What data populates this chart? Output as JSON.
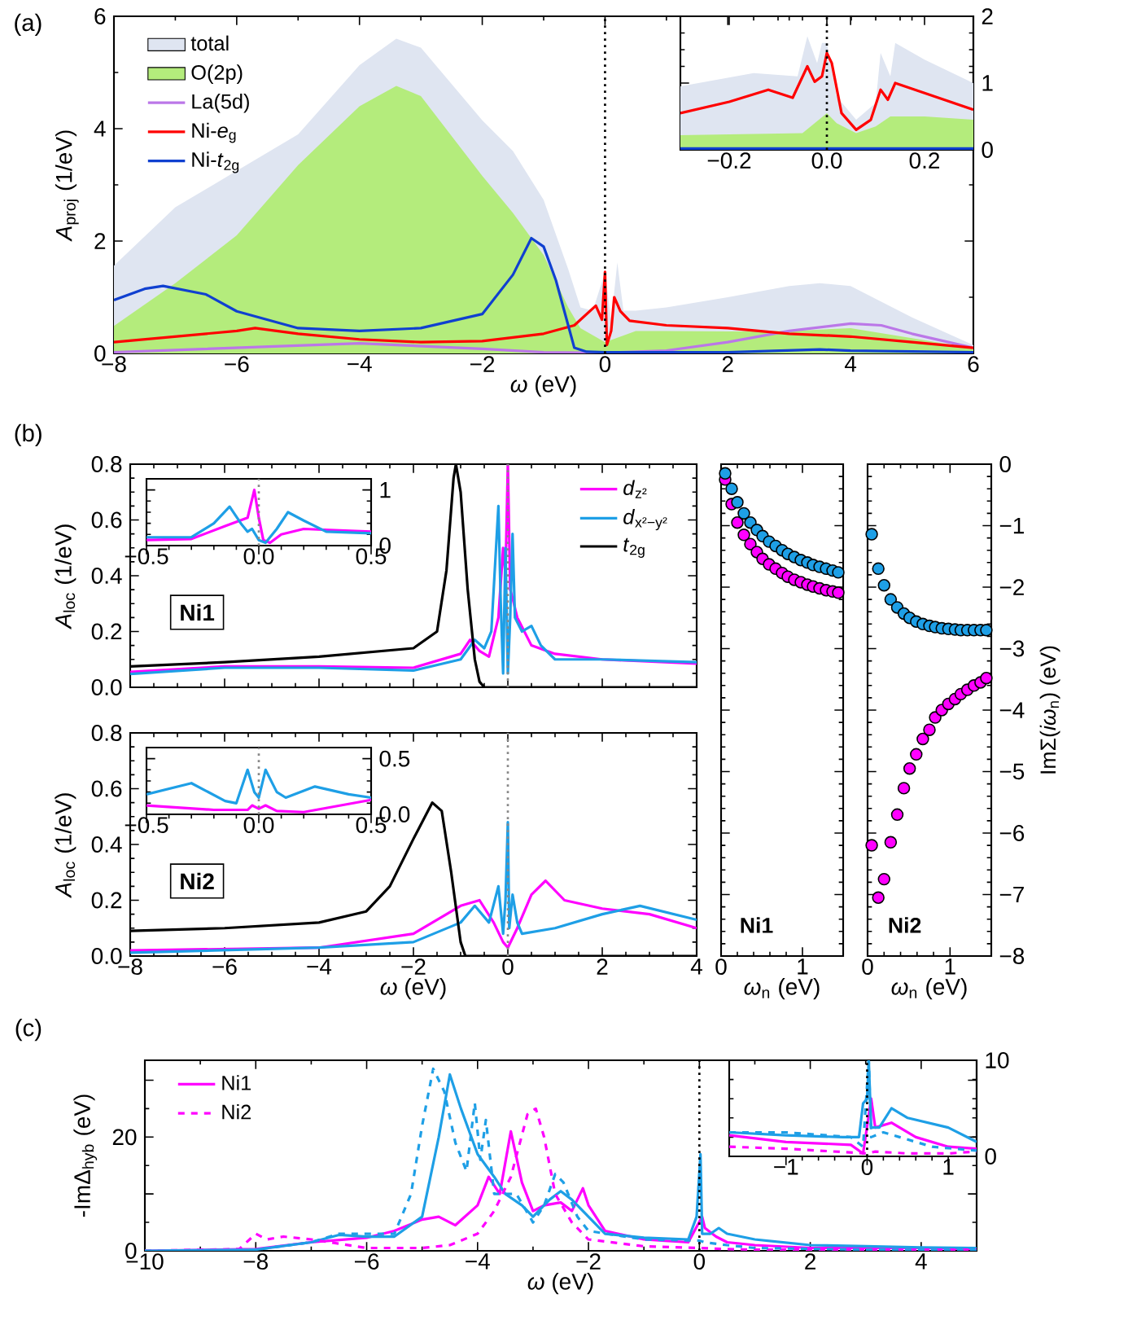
{
  "chart_data": [
    {
      "type": "line",
      "xlabel": "*ω* (eV)",
      "ylabel": "*A*$_{proj}$ (1/eV)",
      "annotations": [
        "(a)"
      ],
      "legend": "top left",
      "xlim": [
        -8,
        6
      ],
      "ylim": [
        0,
        6
      ],
      "xticks": [
        {
          "value": -8,
          "label": "−8"
        },
        {
          "value": -6,
          "label": "−6"
        },
        {
          "value": -4,
          "label": "−4"
        },
        {
          "value": -2,
          "label": "−2"
        },
        0,
        2,
        4,
        6
      ],
      "yticks": [
        0,
        2,
        4,
        6
      ],
      "ref_lines": [
        {
          "axis": "x",
          "value": 0,
          "color": "#000000",
          "line_style": "dotted"
        }
      ],
      "series": [
        {
          "name": "total",
          "type": "area",
          "color": "#dfe5f1",
          "x": [
            -8,
            -7,
            -6,
            -5,
            -4,
            -3.4,
            -3,
            -2,
            -1.5,
            -1,
            -0.6,
            -0.4,
            -0.2,
            0,
            0.1,
            0.2,
            0.3,
            0.5,
            1,
            2,
            3,
            3.5,
            4,
            5,
            6
          ],
          "values": [
            1.56,
            2.6,
            3.25,
            3.9,
            5.13,
            5.6,
            5.44,
            4.15,
            3.6,
            2.73,
            1.5,
            0.82,
            0.76,
            1.44,
            0.58,
            1.62,
            0.76,
            0.76,
            0.82,
            1.0,
            1.2,
            1.25,
            1.2,
            0.64,
            0.15
          ]
        },
        {
          "name": "O(2p)",
          "type": "area",
          "color": "#b4ec7c",
          "x": [
            -8,
            -7,
            -6,
            -5,
            -4,
            -3.4,
            -3,
            -2,
            -1.5,
            -1,
            -0.6,
            -0.4,
            0,
            0.5,
            1,
            2,
            3,
            4,
            5,
            6
          ],
          "values": [
            0.49,
            1.25,
            2.1,
            3.35,
            4.4,
            4.76,
            4.58,
            3.16,
            2.5,
            1.75,
            0.82,
            0.45,
            0.2,
            0.4,
            0.4,
            0.39,
            0.4,
            0.45,
            0.27,
            0.09
          ]
        },
        {
          "name": "La(5d)",
          "color": "#bb77e8",
          "x": [
            -8,
            -6,
            -4,
            -2,
            -1,
            0,
            1,
            2,
            3,
            4,
            4.5,
            5,
            6
          ],
          "values": [
            0.02,
            0.1,
            0.18,
            0.08,
            0.02,
            0.01,
            0.05,
            0.2,
            0.4,
            0.53,
            0.5,
            0.35,
            0.1
          ]
        },
        {
          "name": "Ni-*e*$_{g}$",
          "color": "#ff0000",
          "x": [
            -8,
            -7,
            -6,
            -5.7,
            -5,
            -4,
            -3,
            -2,
            -1,
            -0.5,
            -0.15,
            -0.05,
            0,
            0.03,
            0.1,
            0.15,
            0.25,
            0.4,
            1,
            2,
            3,
            4,
            5,
            6
          ],
          "values": [
            0.2,
            0.3,
            0.4,
            0.45,
            0.35,
            0.25,
            0.2,
            0.22,
            0.35,
            0.5,
            0.85,
            0.6,
            1.45,
            0.15,
            0.4,
            1.0,
            0.75,
            0.58,
            0.5,
            0.45,
            0.35,
            0.3,
            0.2,
            0.1
          ]
        },
        {
          "name": "Ni-*t*$_{2g}$",
          "color": "#1040d0",
          "x": [
            -8,
            -7.5,
            -7.2,
            -6.5,
            -6,
            -5,
            -4,
            -3,
            -2,
            -1.5,
            -1.2,
            -1,
            -0.8,
            -0.6,
            -0.5,
            -0.3,
            0,
            2,
            3.5,
            4,
            6
          ],
          "values": [
            0.95,
            1.15,
            1.2,
            1.05,
            0.75,
            0.45,
            0.4,
            0.45,
            0.7,
            1.4,
            2.05,
            1.9,
            1.3,
            0.5,
            0.1,
            0.03,
            0.02,
            0.02,
            0.07,
            0.05,
            0.02
          ]
        }
      ]
    },
    {
      "type": "line",
      "xlim": [
        -0.3,
        0.3
      ],
      "ylim": [
        0,
        2
      ],
      "xticks": [
        {
          "value": -0.2,
          "label": "−0.2"
        },
        {
          "value": 0,
          "label": "0.0"
        },
        {
          "value": 0.2,
          "label": "0.2"
        }
      ],
      "yticks": [
        0,
        1,
        2
      ],
      "ref_lines": [
        {
          "axis": "x",
          "value": 0,
          "color": "#000000",
          "line_style": "dotted"
        }
      ],
      "series": [
        {
          "type": "area",
          "color": "#dfe5f1",
          "x": [
            -0.3,
            -0.15,
            -0.06,
            -0.04,
            -0.02,
            -0.01,
            0,
            0.02,
            0.06,
            0.1,
            0.11,
            0.13,
            0.14,
            0.2,
            0.3
          ],
          "values": [
            0.95,
            1.15,
            1.1,
            1.7,
            1.3,
            1.6,
            1.6,
            0.8,
            0.45,
            0.7,
            1.45,
            1.1,
            1.6,
            1.35,
            1.0
          ]
        },
        {
          "type": "area",
          "color": "#b4ec7c",
          "x": [
            -0.3,
            -0.05,
            0,
            0.02,
            0.06,
            0.1,
            0.13,
            0.2,
            0.3
          ],
          "values": [
            0.22,
            0.25,
            0.55,
            0.4,
            0.25,
            0.35,
            0.5,
            0.5,
            0.45
          ]
        },
        {
          "color": "#ff0000",
          "x": [
            -0.3,
            -0.2,
            -0.12,
            -0.07,
            -0.04,
            -0.025,
            -0.01,
            0,
            0.01,
            0.03,
            0.06,
            0.09,
            0.11,
            0.125,
            0.14,
            0.2,
            0.3
          ],
          "values": [
            0.55,
            0.72,
            0.9,
            0.78,
            1.25,
            1.02,
            1.1,
            1.45,
            1.3,
            0.55,
            0.3,
            0.45,
            0.9,
            0.75,
            1.0,
            0.85,
            0.6
          ]
        },
        {
          "color": "#1040d0",
          "x": [
            -0.3,
            0.3
          ],
          "values": [
            0.02,
            0.02
          ]
        }
      ]
    },
    {
      "type": "line",
      "ylabel": "*A*$_{loc}$ (1/eV)",
      "annotations": [
        "(b)",
        "Ni1"
      ],
      "legend": "top right",
      "tick_labels": "y",
      "xlim": [
        -8,
        4
      ],
      "ylim": [
        0,
        0.8
      ],
      "xticks": [
        -8,
        -6,
        -4,
        -2,
        0,
        2,
        4
      ],
      "yticks": [
        {
          "value": 0,
          "label": "0.0"
        },
        {
          "value": 0.2,
          "label": "0.2"
        },
        {
          "value": 0.4,
          "label": "0.4"
        },
        {
          "value": 0.6,
          "label": "0.6"
        },
        {
          "value": 0.8,
          "label": "0.8"
        }
      ],
      "ref_lines": [
        {
          "axis": "x",
          "value": 0,
          "color": "#888888",
          "line_style": "dotted"
        }
      ],
      "series": [
        {
          "name": "*d*$_{z²}$",
          "color": "#ff00ff",
          "x": [
            -8,
            -6,
            -4,
            -2,
            -1,
            -0.8,
            -0.6,
            -0.4,
            -0.2,
            -0.1,
            -0.05,
            0,
            0.05,
            0.1,
            0.2,
            0.5,
            1,
            2,
            4
          ],
          "values": [
            0.055,
            0.075,
            0.075,
            0.07,
            0.12,
            0.17,
            0.13,
            0.11,
            0.25,
            0.5,
            0.4,
            0.8,
            0.35,
            0.32,
            0.25,
            0.15,
            0.12,
            0.1,
            0.085
          ]
        },
        {
          "name": "*d*$_{x²−y²}$",
          "color": "#1e9fe6",
          "x": [
            -8,
            -6,
            -4,
            -2,
            -1,
            -0.7,
            -0.5,
            -0.35,
            -0.2,
            -0.15,
            -0.1,
            -0.05,
            0,
            0.05,
            0.1,
            0.15,
            0.3,
            0.5,
            0.7,
            1,
            2,
            4
          ],
          "values": [
            0.048,
            0.07,
            0.07,
            0.06,
            0.1,
            0.17,
            0.14,
            0.2,
            0.65,
            0.3,
            0.05,
            0.5,
            0.05,
            0.25,
            0.55,
            0.25,
            0.2,
            0.22,
            0.15,
            0.1,
            0.1,
            0.09
          ]
        },
        {
          "name": "*t*$_{2g}$",
          "color": "#000000",
          "x": [
            -8,
            -6,
            -4,
            -2,
            -1.5,
            -1.3,
            -1.15,
            -1.1,
            -1.0,
            -0.85,
            -0.7,
            -0.6,
            -0.5,
            4
          ],
          "values": [
            0.075,
            0.09,
            0.11,
            0.14,
            0.2,
            0.42,
            0.75,
            0.8,
            0.7,
            0.35,
            0.1,
            0.02,
            0,
            0
          ]
        }
      ]
    },
    {
      "type": "line",
      "xlim": [
        -0.5,
        0.5
      ],
      "ylim": [
        0,
        1.2
      ],
      "xticks": [
        {
          "value": -0.5,
          "label": "−0.5"
        },
        {
          "value": 0,
          "label": "0.0"
        },
        {
          "value": 0.5,
          "label": "0.5"
        }
      ],
      "yticks": [
        0,
        1
      ],
      "ref_lines": [
        {
          "axis": "x",
          "value": 0,
          "color": "#888888",
          "line_style": "dotted"
        }
      ],
      "series": [
        {
          "color": "#ff00ff",
          "x": [
            -0.5,
            -0.3,
            -0.15,
            -0.05,
            -0.02,
            0,
            0.02,
            0.05,
            0.1,
            0.2,
            0.5
          ],
          "values": [
            0.1,
            0.12,
            0.35,
            0.5,
            1.0,
            0.5,
            0.1,
            0.05,
            0.2,
            0.3,
            0.25
          ]
        },
        {
          "color": "#1e9fe6",
          "x": [
            -0.5,
            -0.3,
            -0.2,
            -0.13,
            -0.08,
            -0.05,
            -0.03,
            0,
            0.03,
            0.08,
            0.13,
            0.2,
            0.3,
            0.5
          ],
          "values": [
            0.15,
            0.15,
            0.4,
            0.7,
            0.4,
            0.25,
            0.3,
            0.1,
            0.05,
            0.3,
            0.6,
            0.45,
            0.25,
            0.22
          ]
        }
      ]
    },
    {
      "type": "line",
      "xlabel": "*ω* (eV)",
      "ylabel": "*A*$_{loc}$ (1/eV)",
      "annotations": [
        "Ni2"
      ],
      "xlim": [
        -8,
        4
      ],
      "ylim": [
        0,
        0.8
      ],
      "xticks": [
        {
          "value": -8,
          "label": "−8"
        },
        {
          "value": -6,
          "label": "−6"
        },
        {
          "value": -4,
          "label": "−4"
        },
        {
          "value": -2,
          "label": "−2"
        },
        0,
        2,
        4
      ],
      "yticks": [
        {
          "value": 0,
          "label": "0.0"
        },
        {
          "value": 0.2,
          "label": "0.2"
        },
        {
          "value": 0.4,
          "label": "0.4"
        },
        {
          "value": 0.6,
          "label": "0.6"
        },
        {
          "value": 0.8,
          "label": "0.8"
        }
      ],
      "ref_lines": [
        {
          "axis": "x",
          "value": 0,
          "color": "#888888",
          "line_style": "dotted"
        }
      ],
      "series": [
        {
          "color": "#ff00ff",
          "x": [
            -8,
            -4,
            -2,
            -1,
            -0.6,
            -0.3,
            -0.1,
            0,
            0.2,
            0.5,
            0.8,
            1.2,
            2,
            3,
            4
          ],
          "values": [
            0.02,
            0.03,
            0.08,
            0.18,
            0.2,
            0.12,
            0.05,
            0.03,
            0.1,
            0.22,
            0.27,
            0.2,
            0.17,
            0.15,
            0.1
          ]
        },
        {
          "color": "#1e9fe6",
          "x": [
            -8,
            -4,
            -2,
            -1,
            -0.7,
            -0.4,
            -0.2,
            -0.1,
            -0.05,
            0,
            0.03,
            0.1,
            0.2,
            0.3,
            1,
            2,
            2.8,
            4
          ],
          "values": [
            0.012,
            0.03,
            0.05,
            0.12,
            0.18,
            0.12,
            0.25,
            0.08,
            0.2,
            0.48,
            0.1,
            0.22,
            0.12,
            0.08,
            0.1,
            0.15,
            0.18,
            0.13
          ]
        },
        {
          "color": "#000000",
          "x": [
            -8,
            -6,
            -4,
            -3,
            -2.5,
            -2,
            -1.6,
            -1.4,
            -1.2,
            -1,
            -0.9,
            4
          ],
          "values": [
            0.09,
            0.1,
            0.12,
            0.16,
            0.25,
            0.42,
            0.55,
            0.52,
            0.3,
            0.05,
            0,
            0
          ]
        }
      ]
    },
    {
      "type": "line",
      "xlim": [
        -0.5,
        0.5
      ],
      "ylim": [
        0,
        0.6
      ],
      "xticks": [
        {
          "value": -0.5,
          "label": "−0.5"
        },
        {
          "value": 0,
          "label": "0.0"
        },
        {
          "value": 0.5,
          "label": "0.5"
        }
      ],
      "yticks": [
        {
          "value": 0,
          "label": "0.0"
        },
        {
          "value": 0.5,
          "label": "0.5"
        }
      ],
      "ref_lines": [
        {
          "axis": "x",
          "value": 0,
          "color": "#888888",
          "line_style": "dotted"
        }
      ],
      "series": [
        {
          "color": "#1e9fe6",
          "x": [
            -0.5,
            -0.3,
            -0.15,
            -0.1,
            -0.05,
            -0.02,
            0,
            0.03,
            0.08,
            0.12,
            0.25,
            0.4,
            0.5
          ],
          "values": [
            0.18,
            0.28,
            0.12,
            0.1,
            0.4,
            0.2,
            0.15,
            0.4,
            0.2,
            0.15,
            0.25,
            0.18,
            0.15
          ]
        },
        {
          "color": "#ff00ff",
          "x": [
            -0.5,
            -0.2,
            -0.05,
            -0.03,
            0,
            0.03,
            0.08,
            0.2,
            0.5
          ],
          "values": [
            0.08,
            0.04,
            0.04,
            0.08,
            0.05,
            0.08,
            0.03,
            0.02,
            0.13
          ]
        }
      ]
    },
    {
      "type": "scatter",
      "marker": "circle",
      "xlabel": "*ω*$_{n}$ (eV)",
      "annotations": [
        "Ni1"
      ],
      "tick_labels": "x",
      "xlim": [
        0,
        1.5
      ],
      "ylim": [
        -8,
        0
      ],
      "xticks": [
        0,
        1
      ],
      "yticks": [
        -8,
        -7,
        -6,
        -5,
        -4,
        -3,
        -2,
        -1,
        0
      ],
      "x": [
        0.05,
        0.13,
        0.2,
        0.28,
        0.36,
        0.44,
        0.51,
        0.59,
        0.67,
        0.75,
        0.82,
        0.9,
        0.98,
        1.06,
        1.13,
        1.21,
        1.29,
        1.37,
        1.44
      ],
      "series": [
        {
          "color": "#ff00ff",
          "values": [
            -0.25,
            -0.65,
            -0.95,
            -1.15,
            -1.3,
            -1.43,
            -1.54,
            -1.63,
            -1.7,
            -1.77,
            -1.83,
            -1.88,
            -1.92,
            -1.96,
            -1.99,
            -2.02,
            -2.05,
            -2.07,
            -2.09
          ]
        },
        {
          "color": "#1e9fe6",
          "values": [
            -0.15,
            -0.4,
            -0.62,
            -0.8,
            -0.95,
            -1.07,
            -1.17,
            -1.26,
            -1.33,
            -1.4,
            -1.46,
            -1.51,
            -1.56,
            -1.6,
            -1.64,
            -1.67,
            -1.7,
            -1.73,
            -1.76
          ]
        }
      ]
    },
    {
      "type": "scatter",
      "marker": "circle",
      "xlabel": "*ω*$_{n}$ (eV)",
      "ylabel": "ImΣ(*iω*$_{n}$) (eV)",
      "annotations": [
        "Ni2"
      ],
      "xlim": [
        0,
        1.5
      ],
      "ylim": [
        -8,
        0
      ],
      "xticks": [
        0,
        1
      ],
      "yticks": [
        {
          "value": -8,
          "label": "−8"
        },
        {
          "value": -7,
          "label": "−7"
        },
        {
          "value": -6,
          "label": "−6"
        },
        {
          "value": -5,
          "label": "−5"
        },
        {
          "value": -4,
          "label": "−4"
        },
        {
          "value": -3,
          "label": "−3"
        },
        {
          "value": -2,
          "label": "−2"
        },
        {
          "value": -1,
          "label": "−1"
        },
        0
      ],
      "x": [
        0.05,
        0.13,
        0.2,
        0.28,
        0.36,
        0.44,
        0.51,
        0.59,
        0.67,
        0.75,
        0.82,
        0.9,
        0.98,
        1.06,
        1.13,
        1.21,
        1.29,
        1.37,
        1.44
      ],
      "series": [
        {
          "color": "#ff00ff",
          "values": [
            -6.2,
            -7.05,
            -6.75,
            -6.15,
            -5.7,
            -5.27,
            -4.95,
            -4.72,
            -4.47,
            -4.32,
            -4.12,
            -4.0,
            -3.9,
            -3.82,
            -3.74,
            -3.67,
            -3.6,
            -3.55,
            -3.48
          ]
        },
        {
          "color": "#1e9fe6",
          "values": [
            -1.14,
            -1.7,
            -1.97,
            -2.2,
            -2.33,
            -2.43,
            -2.5,
            -2.56,
            -2.6,
            -2.63,
            -2.65,
            -2.67,
            -2.68,
            -2.69,
            -2.7,
            -2.7,
            -2.7,
            -2.7,
            -2.7
          ]
        }
      ]
    },
    {
      "type": "line",
      "xlabel": "*ω* (eV)",
      "ylabel": "-ImΔ$_{hyb}$ (eV)",
      "annotations": [
        "(c)"
      ],
      "legend": "top left",
      "xlim": [
        -10,
        5
      ],
      "ylim": [
        0,
        33.5
      ],
      "xticks": [
        {
          "value": -10,
          "label": "−10"
        },
        {
          "value": -8,
          "label": "−8"
        },
        {
          "value": -6,
          "label": "−6"
        },
        {
          "value": -4,
          "label": "−4"
        },
        {
          "value": -2,
          "label": "−2"
        },
        0,
        2,
        4
      ],
      "yticks": [
        0,
        {
          "value": 10,
          "label": null
        },
        20,
        {
          "value": 30,
          "label": null
        }
      ],
      "ref_lines": [
        {
          "axis": "x",
          "value": 0,
          "color": "#000000",
          "line_style": "dotted"
        }
      ],
      "series": [
        {
          "name": "Ni1",
          "color": "#ff00ff",
          "line_style": "solid",
          "x": [
            -10,
            -8,
            -7,
            -6,
            -5.5,
            -5,
            -4.7,
            -4.4,
            -4,
            -3.8,
            -3.6,
            -3.4,
            -3.2,
            -3,
            -2.8,
            -2.5,
            -2.3,
            -2.1,
            -2,
            -1.7,
            -1,
            -0.2,
            0.05,
            0.1,
            0.3,
            0.5,
            1,
            2,
            4,
            5
          ],
          "values": [
            0,
            0.3,
            1.5,
            2.3,
            3.5,
            5.5,
            6,
            4.5,
            8,
            13,
            10,
            21,
            12,
            7,
            8,
            8.5,
            7,
            11,
            8,
            3.5,
            2,
            1.5,
            6,
            4,
            2.5,
            1.5,
            1,
            0.5,
            0.5,
            0.3
          ]
        },
        {
          "color": "#1e9fe6",
          "line_style": "solid",
          "x": [
            -10,
            -8,
            -7,
            -6.5,
            -6,
            -5.5,
            -5,
            -4.7,
            -4.5,
            -4.3,
            -4,
            -3.7,
            -3.5,
            -3.2,
            -3,
            -2.7,
            -2.5,
            -2.3,
            -2,
            -1.7,
            -1,
            -0.2,
            -0.05,
            0.02,
            0.05,
            0.2,
            0.35,
            0.5,
            1,
            2,
            3,
            4,
            5
          ],
          "values": [
            0,
            0.2,
            1.5,
            2.8,
            2.5,
            2.5,
            6,
            20,
            31,
            25,
            17,
            13,
            10,
            8,
            6,
            9,
            10.5,
            9,
            6,
            3,
            2.3,
            2,
            6,
            17,
            3,
            3,
            4,
            3,
            2,
            1,
            0.8,
            0.6,
            0.5
          ]
        },
        {
          "name": "Ni2",
          "color": "#ff00ff",
          "line_style": "dashed",
          "x": [
            -10,
            -8.3,
            -8,
            -7.8,
            -7.5,
            -7,
            -6,
            -5,
            -4.5,
            -4,
            -3.7,
            -3.4,
            -3.1,
            -2.95,
            -2.8,
            -2.6,
            -2.3,
            -2,
            -1,
            0,
            0.5,
            1,
            5
          ],
          "values": [
            0,
            0.3,
            3,
            2,
            2.5,
            2,
            0.5,
            0.5,
            1,
            3,
            7,
            13,
            24,
            25,
            20,
            10,
            5,
            2,
            0.8,
            0.5,
            0.3,
            0.2,
            0.2
          ]
        },
        {
          "color": "#1e9fe6",
          "line_style": "dashed",
          "x": [
            -10,
            -8,
            -7,
            -6.5,
            -6,
            -5.5,
            -5.2,
            -5,
            -4.8,
            -4.6,
            -4.4,
            -4.2,
            -4.05,
            -3.95,
            -3.85,
            -3.7,
            -3.3,
            -3,
            -2.8,
            -2.6,
            -2.45,
            -2.2,
            -2,
            -1,
            0,
            0.1,
            0.5,
            1,
            3,
            5
          ],
          "values": [
            0,
            0.2,
            1.5,
            3,
            3,
            3,
            10,
            22,
            32,
            28,
            19,
            14,
            26,
            16,
            23,
            10,
            10,
            5,
            8,
            13.5,
            12,
            6,
            3.5,
            2,
            1.8,
            1.5,
            1,
            0.5,
            0.2,
            0.1
          ]
        }
      ]
    },
    {
      "type": "line",
      "xlim": [
        -1.7,
        1.35
      ],
      "ylim": [
        0,
        10
      ],
      "xticks": [
        {
          "value": -1,
          "label": "−1"
        },
        0,
        1
      ],
      "yticks": [
        0,
        10
      ],
      "ref_lines": [
        {
          "axis": "x",
          "value": 0,
          "color": "#000000",
          "line_style": "dotted"
        }
      ],
      "series": [
        {
          "color": "#ff00ff",
          "line_style": "solid",
          "x": [
            -1.7,
            -1,
            -0.2,
            -0.05,
            0.05,
            0.1,
            0.3,
            0.6,
            1,
            1.35
          ],
          "values": [
            2.2,
            1.5,
            1.2,
            0.3,
            6,
            3,
            3.5,
            2,
            1,
            0.8
          ]
        },
        {
          "color": "#1e9fe6",
          "line_style": "solid",
          "x": [
            -1.7,
            -1,
            -0.3,
            -0.1,
            -0.05,
            0,
            0.02,
            0.05,
            0.15,
            0.3,
            0.5,
            1,
            1.35
          ],
          "values": [
            2.5,
            2.2,
            2,
            2,
            5.5,
            6,
            10,
            3,
            3,
            5,
            4,
            3,
            1.5
          ]
        },
        {
          "color": "#ff00ff",
          "line_style": "dashed",
          "x": [
            -1.7,
            -1,
            0,
            0.1,
            0.5,
            1,
            1.35
          ],
          "values": [
            1,
            0.8,
            0.3,
            0.5,
            0.3,
            0.3,
            0.5
          ]
        },
        {
          "color": "#1e9fe6",
          "line_style": "dashed",
          "x": [
            -1.7,
            -1,
            -0.2,
            -0.05,
            0.02,
            0.05,
            0.2,
            0.4,
            0.8,
            1.35
          ],
          "values": [
            2.5,
            2.5,
            2,
            1,
            10,
            2,
            2.5,
            2,
            1,
            0.6
          ]
        }
      ]
    }
  ]
}
